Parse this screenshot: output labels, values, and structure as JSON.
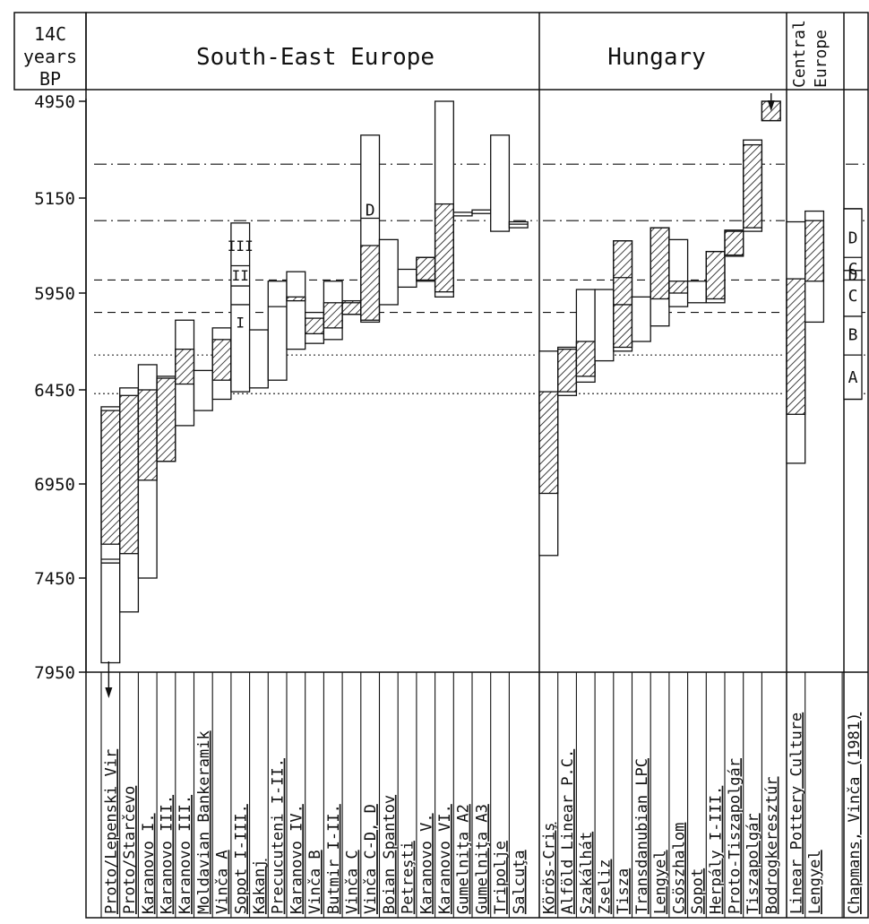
{
  "header": {
    "axis_title_line1": "14C",
    "axis_title_line2": "years",
    "axis_title_line3": "BP",
    "regions": [
      {
        "id": "see",
        "label": "South-East Europe"
      },
      {
        "id": "hun",
        "label": "Hungary"
      },
      {
        "id": "ce",
        "label_line1": "Central",
        "label_line2": "Europe"
      }
    ]
  },
  "chart_data": {
    "type": "range-bar",
    "ylabel": "14C years BP",
    "y_ticks": [
      4950,
      5150,
      5950,
      6450,
      6950,
      7450,
      7950
    ],
    "horizontal_lines": [
      {
        "value": 5080,
        "style": "dashdot"
      },
      {
        "value": 5340,
        "style": "dashdot"
      },
      {
        "value": 5840,
        "style": "dashed"
      },
      {
        "value": 6050,
        "style": "dashed"
      },
      {
        "value": 6270,
        "style": "dotted"
      },
      {
        "value": 6470,
        "style": "dotted"
      }
    ],
    "cultures": [
      {
        "label": "Proto/Lepenski Vir",
        "region": "see",
        "span": [
          6540,
          7900
        ],
        "hatch": [
          6560,
          7270
        ],
        "ticks": [
          7350,
          7370
        ],
        "arrow": true
      },
      {
        "label": "Proto/Starčevo",
        "region": "see",
        "span": [
          6440,
          7630
        ],
        "hatch": [
          6480,
          7320
        ],
        "ticks": [],
        "arrow": false
      },
      {
        "label": "Karanovo I.",
        "region": "see",
        "span": [
          6320,
          7450
        ],
        "hatch": [
          6450,
          6930
        ],
        "ticks": [],
        "arrow": false
      },
      {
        "label": "Karanovo III.",
        "region": "see",
        "span": [
          6380,
          6830
        ],
        "hatch": [
          6390,
          6830
        ],
        "ticks": [],
        "arrow": false
      },
      {
        "label": "Karanovo III.",
        "region": "see",
        "span": [
          6090,
          6640
        ],
        "hatch": [
          6240,
          6420
        ],
        "ticks": [],
        "arrow": false
      },
      {
        "label": "Moldavian Bankeramik",
        "region": "see",
        "span": [
          6350,
          6560
        ],
        "hatch": [],
        "ticks": [],
        "arrow": false
      },
      {
        "label": "Vinča A",
        "region": "see",
        "span": [
          6130,
          6500
        ],
        "hatch": [
          6190,
          6400
        ],
        "ticks": [],
        "arrow": false
      },
      {
        "label": "Sopot I-III.",
        "region": "see",
        "span": [
          5360,
          6460
        ],
        "hatch": [],
        "ticks": [
          5720,
          5890,
          6010
        ],
        "roman_labels": [
          {
            "text": "III",
            "value": 5550
          },
          {
            "text": "II",
            "value": 5800
          },
          {
            "text": "I",
            "value": 6100
          }
        ],
        "arrow": false
      },
      {
        "label": "Kakanj",
        "region": "see",
        "span": [
          6140,
          6440
        ],
        "hatch": [],
        "ticks": [],
        "arrow": false
      },
      {
        "label": "Precucuteni I-II.",
        "region": "see",
        "span": [
          5850,
          6400
        ],
        "hatch": [],
        "ticks": [
          6020
        ],
        "arrow": false
      },
      {
        "label": "Karanovo IV.",
        "region": "see",
        "span": [
          5770,
          6240
        ],
        "hatch": [
          5970,
          5990
        ],
        "ticks": [],
        "arrow": false
      },
      {
        "label": "Vinča B",
        "region": "see",
        "span": [
          6050,
          6210
        ],
        "hatch": [
          6080,
          6160
        ],
        "ticks": [],
        "arrow": false
      },
      {
        "label": "Butmir I-II.",
        "region": "see",
        "span": [
          5850,
          6190
        ],
        "hatch": [
          6000,
          6130
        ],
        "ticks": [],
        "arrow": false
      },
      {
        "label": "Vinča C",
        "region": "see",
        "span": [
          6000,
          6060
        ],
        "hatch": [
          5990,
          6060
        ],
        "ticks": [],
        "arrow": false
      },
      {
        "label": "Vinča C-D, D",
        "region": "see",
        "span": [
          5020,
          6100
        ],
        "hatch": [
          5550,
          6090
        ],
        "ticks": [
          5320
        ],
        "letter": {
          "text": "D",
          "value": 5250
        },
        "arrow": false
      },
      {
        "label": "Boian Spantov",
        "region": "see",
        "span": [
          5500,
          6010
        ],
        "hatch": [],
        "ticks": [],
        "arrow": false
      },
      {
        "label": "Petreşti",
        "region": "see",
        "span": [
          5750,
          5900
        ],
        "hatch": [],
        "ticks": [],
        "arrow": false
      },
      {
        "label": "Karanovo V.",
        "region": "see",
        "span": [
          5650,
          5850
        ],
        "hatch": [
          5650,
          5840
        ],
        "ticks": [],
        "arrow": false
      },
      {
        "label": "Karanovo VI.",
        "region": "see",
        "span": [
          4950,
          5970
        ],
        "hatch": [
          5200,
          5940
        ],
        "ticks": [],
        "arrow": false
      },
      {
        "label": "Gumelniţa A2",
        "region": "see",
        "span": [
          5270,
          5300
        ],
        "hatch": [],
        "ticks": [],
        "arrow": false
      },
      {
        "label": "Gumelniţa A3",
        "region": "see",
        "span": [
          5250,
          5280
        ],
        "hatch": [],
        "ticks": [],
        "arrow": false
      },
      {
        "label": "Tripolje",
        "region": "see",
        "span": [
          5020,
          5430
        ],
        "hatch": [],
        "ticks": [],
        "arrow": false
      },
      {
        "label": "Salcuţa",
        "region": "see",
        "span": [
          5350,
          5400
        ],
        "hatch": [],
        "ticks": [
          5370
        ],
        "arrow": false
      },
      {
        "label": "Körös-Criş",
        "region": "hun",
        "span": [
          6250,
          7330
        ],
        "hatch": [
          6460,
          7000
        ],
        "ticks": [],
        "arrow": false
      },
      {
        "label": "Alföld Linear P.C.",
        "region": "hun",
        "span": [
          6230,
          6480
        ],
        "hatch": [
          6240,
          6460
        ],
        "ticks": [],
        "arrow": false
      },
      {
        "label": "Szakálhát",
        "region": "hun",
        "span": [
          5920,
          6410
        ],
        "hatch": [
          6200,
          6380
        ],
        "ticks": [],
        "arrow": false
      },
      {
        "label": "Zseliz",
        "region": "hun",
        "span": [
          5920,
          6300
        ],
        "hatch": [],
        "ticks": [],
        "arrow": false
      },
      {
        "label": "Tisza",
        "region": "hun",
        "span": [
          5510,
          6250
        ],
        "hatch": [
          5510,
          6230
        ],
        "ticks": [
          5820,
          6010
        ],
        "arrow": false
      },
      {
        "label": "Transdanubian LPC",
        "region": "hun",
        "span": [
          5970,
          6200
        ],
        "hatch": [],
        "ticks": [],
        "arrow": false
      },
      {
        "label": "Lengyel",
        "region": "hun",
        "span": [
          5400,
          6120
        ],
        "hatch": [
          5400,
          5980
        ],
        "ticks": [],
        "arrow": false
      },
      {
        "label": "Csöszhalom",
        "region": "hun",
        "span": [
          5500,
          6020
        ],
        "hatch": [
          5850,
          5950
        ],
        "ticks": [],
        "arrow": false
      },
      {
        "label": "Sopot",
        "region": "hun",
        "span": [
          5850,
          6000
        ],
        "hatch": [],
        "ticks": [],
        "arrow": false
      },
      {
        "label": "Herpály I-III.",
        "region": "hun",
        "span": [
          5600,
          6000
        ],
        "hatch": [
          5600,
          5980
        ],
        "ticks": [],
        "arrow": false
      },
      {
        "label": "Proto-Tiszapolgár",
        "region": "hun",
        "span": [
          5420,
          5640
        ],
        "hatch": [
          5430,
          5630
        ],
        "ticks": [],
        "arrow": false
      },
      {
        "label": "Tiszapolgár",
        "region": "hun",
        "span": [
          5030,
          5430
        ],
        "hatch": [
          5040,
          5400
        ],
        "ticks": [],
        "arrow": false
      },
      {
        "label": "Bodrogkeresztúr",
        "region": "hun",
        "span": [
          4950,
          4990
        ],
        "hatch": [
          4950,
          4990
        ],
        "ticks": [],
        "arrow_up": true
      },
      {
        "label": "Linear Pottery Culture",
        "region": "ce",
        "span": [
          5350,
          6840
        ],
        "hatch": [
          5830,
          6580
        ],
        "ticks": [],
        "arrow": false
      },
      {
        "label": "Lengyel",
        "region": "ce",
        "span": [
          5260,
          6100
        ],
        "hatch": [
          5340,
          5850
        ],
        "ticks": [],
        "arrow": false
      }
    ],
    "phase_column": {
      "label": "Chapmans, Vinča (1981)",
      "span": [
        5240,
        6500
      ],
      "phases": [
        {
          "text": "D",
          "value": 5480
        },
        {
          "text": "C",
          "value": 5740
        },
        {
          "text": "D",
          "value": 5790
        },
        {
          "text": "C",
          "value": 5960
        },
        {
          "text": "B",
          "value": 6160
        },
        {
          "text": "A",
          "value": 6380
        }
      ],
      "boundaries": [
        5240,
        5650,
        5760,
        5840,
        6070,
        6270,
        6500
      ]
    }
  }
}
